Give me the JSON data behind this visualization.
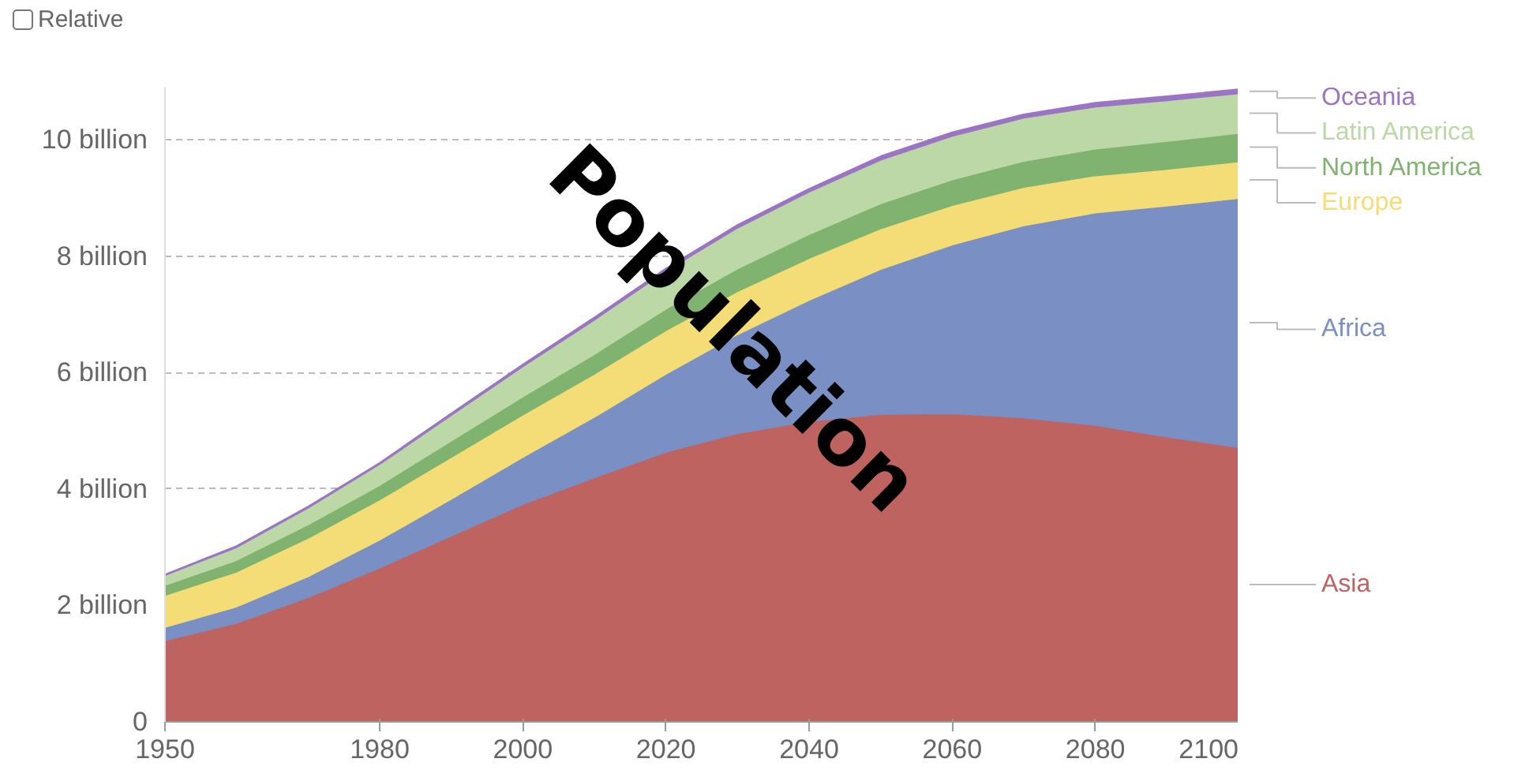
{
  "chart_data": {
    "type": "area",
    "stacked": true,
    "annotations": [
      "Relative",
      "Population"
    ],
    "x": [
      1950,
      1960,
      1970,
      1980,
      1990,
      2000,
      2010,
      2020,
      2030,
      2040,
      2050,
      2060,
      2070,
      2080,
      2090,
      2100
    ],
    "series": [
      {
        "name": "Asia",
        "color": "#bf6360",
        "values": [
          1.4,
          1.7,
          2.14,
          2.65,
          3.2,
          3.74,
          4.2,
          4.64,
          4.96,
          5.17,
          5.29,
          5.3,
          5.23,
          5.1,
          4.9,
          4.72
        ]
      },
      {
        "name": "Africa",
        "color": "#7a8fc4",
        "values": [
          0.23,
          0.28,
          0.36,
          0.48,
          0.63,
          0.81,
          1.04,
          1.34,
          1.7,
          2.08,
          2.49,
          2.9,
          3.3,
          3.65,
          3.97,
          4.28
        ]
      },
      {
        "name": "Europe",
        "color": "#f4dd76",
        "values": [
          0.55,
          0.6,
          0.66,
          0.69,
          0.72,
          0.73,
          0.74,
          0.75,
          0.74,
          0.72,
          0.7,
          0.68,
          0.66,
          0.64,
          0.63,
          0.63
        ]
      },
      {
        "name": "North America",
        "color": "#80b36f",
        "values": [
          0.17,
          0.2,
          0.23,
          0.25,
          0.28,
          0.31,
          0.34,
          0.37,
          0.39,
          0.41,
          0.43,
          0.44,
          0.45,
          0.46,
          0.48,
          0.49
        ]
      },
      {
        "name": "Latin America",
        "color": "#bcd8a6",
        "values": [
          0.17,
          0.22,
          0.29,
          0.36,
          0.44,
          0.52,
          0.59,
          0.65,
          0.7,
          0.73,
          0.75,
          0.75,
          0.74,
          0.72,
          0.7,
          0.68
        ]
      },
      {
        "name": "Oceania",
        "color": "#9b74c4",
        "values": [
          0.01,
          0.02,
          0.02,
          0.02,
          0.03,
          0.03,
          0.04,
          0.04,
          0.05,
          0.05,
          0.06,
          0.06,
          0.06,
          0.07,
          0.07,
          0.07
        ]
      }
    ],
    "xlim": [
      1950,
      2100
    ],
    "xticks": [
      1950,
      1980,
      2000,
      2020,
      2040,
      2060,
      2080,
      2100
    ],
    "ylim": [
      0,
      10.9
    ],
    "yticks": [
      0,
      {
        "value": 2,
        "label": "2 billion"
      },
      {
        "value": 4,
        "label": "4 billion"
      },
      {
        "value": 6,
        "label": "6 billion"
      },
      {
        "value": 8,
        "label": "8 billion"
      },
      {
        "value": 10,
        "label": "10 billion"
      }
    ],
    "grid": "y"
  }
}
